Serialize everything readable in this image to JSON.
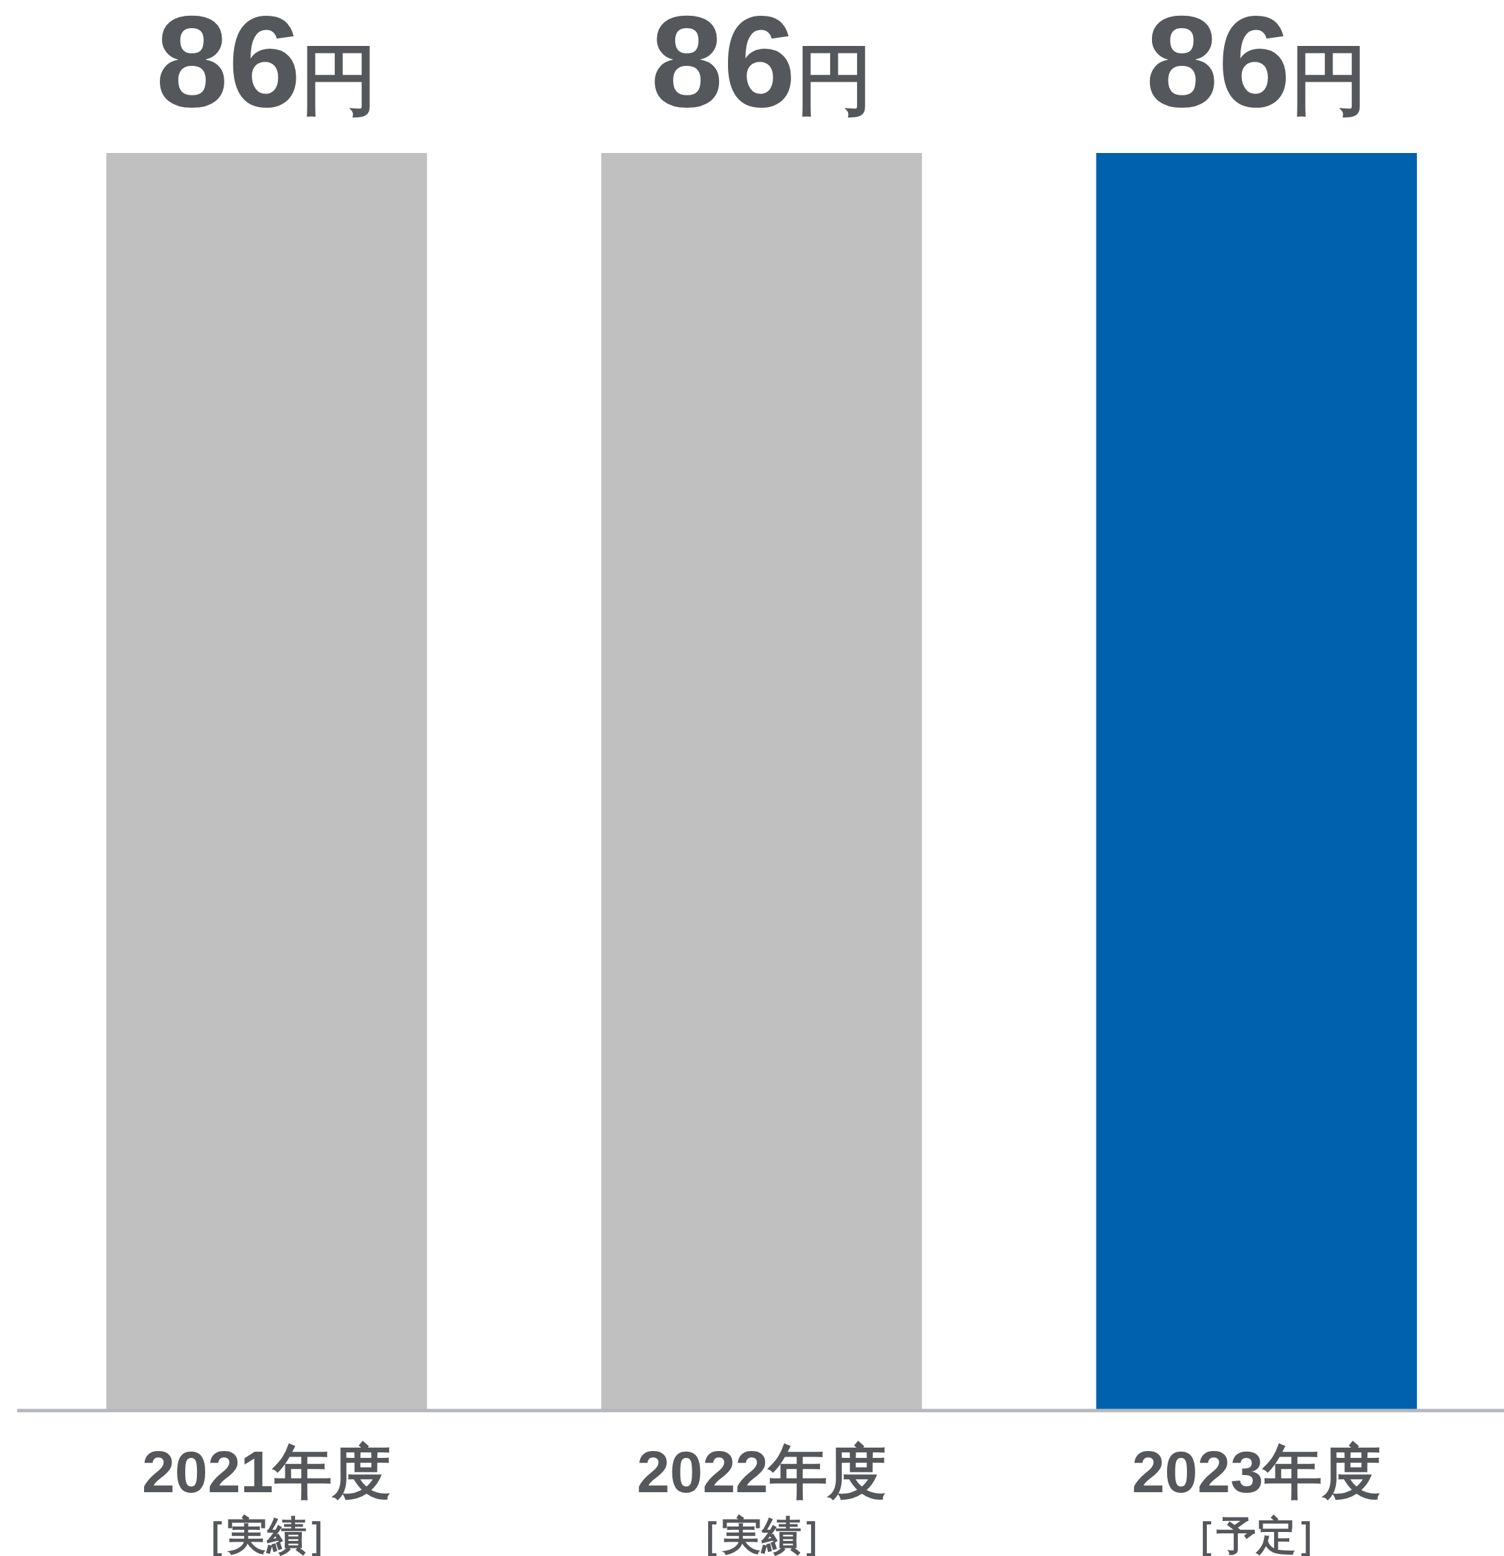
{
  "chart_data": {
    "type": "bar",
    "categories": [
      "2021年度［実績］",
      "2022年度［実績］",
      "2023年度［予定］"
    ],
    "values": [
      86,
      86,
      86
    ],
    "colors": [
      "#c0c0c0",
      "#c0c0c0",
      "#0062ae"
    ],
    "ylim": [
      0,
      86
    ],
    "value_labels": [
      "86円",
      "86円",
      "86円"
    ]
  }
}
